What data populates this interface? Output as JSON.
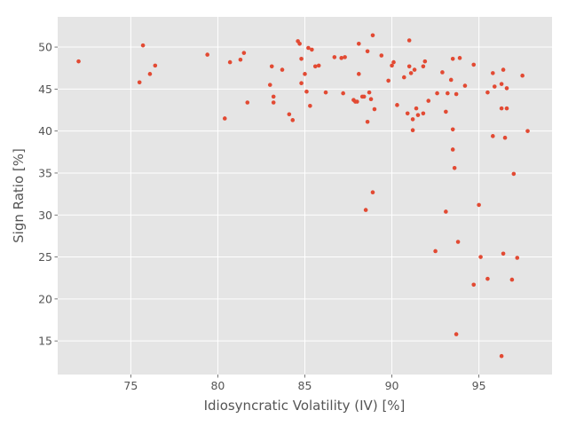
{
  "chart_data": {
    "type": "scatter",
    "title": "",
    "xlabel": "Idiosyncratic Volatility (IV) [%]",
    "ylabel": "Sign Ratio [%]",
    "xlim": [
      70.8,
      99.2
    ],
    "ylim": [
      11.0,
      53.6
    ],
    "xticks": [
      75,
      80,
      85,
      90,
      95
    ],
    "yticks": [
      15,
      20,
      25,
      30,
      35,
      40,
      45,
      50
    ],
    "grid": true,
    "style": "ggplot",
    "marker_color": "#E24A33",
    "series": [
      {
        "points": [
          [
            72.0,
            48.3
          ],
          [
            75.5,
            45.8
          ],
          [
            75.7,
            50.2
          ],
          [
            76.1,
            46.8
          ],
          [
            76.4,
            47.8
          ],
          [
            79.4,
            49.1
          ],
          [
            80.4,
            41.5
          ],
          [
            80.7,
            48.2
          ],
          [
            81.3,
            48.5
          ],
          [
            81.5,
            49.3
          ],
          [
            81.7,
            43.4
          ],
          [
            83.0,
            45.5
          ],
          [
            83.1,
            47.7
          ],
          [
            83.2,
            44.1
          ],
          [
            83.2,
            43.4
          ],
          [
            83.7,
            47.3
          ],
          [
            84.1,
            42.0
          ],
          [
            84.3,
            41.3
          ],
          [
            84.6,
            50.7
          ],
          [
            84.7,
            50.4
          ],
          [
            84.8,
            45.7
          ],
          [
            84.8,
            48.6
          ],
          [
            85.0,
            46.8
          ],
          [
            85.1,
            44.7
          ],
          [
            85.2,
            49.9
          ],
          [
            85.3,
            43.0
          ],
          [
            85.4,
            49.7
          ],
          [
            85.6,
            47.7
          ],
          [
            85.8,
            47.8
          ],
          [
            86.2,
            44.6
          ],
          [
            86.7,
            48.8
          ],
          [
            87.1,
            48.7
          ],
          [
            87.2,
            44.5
          ],
          [
            87.3,
            48.8
          ],
          [
            87.8,
            43.7
          ],
          [
            87.9,
            43.5
          ],
          [
            88.0,
            43.5
          ],
          [
            88.1,
            46.8
          ],
          [
            88.1,
            50.4
          ],
          [
            88.3,
            44.1
          ],
          [
            88.4,
            44.1
          ],
          [
            88.5,
            30.6
          ],
          [
            88.6,
            49.5
          ],
          [
            88.6,
            41.1
          ],
          [
            88.7,
            44.6
          ],
          [
            88.8,
            43.8
          ],
          [
            88.9,
            51.4
          ],
          [
            88.9,
            32.7
          ],
          [
            89.0,
            42.6
          ],
          [
            89.4,
            49.0
          ],
          [
            89.8,
            46.0
          ],
          [
            90.0,
            47.8
          ],
          [
            90.1,
            48.2
          ],
          [
            90.3,
            43.1
          ],
          [
            90.7,
            46.4
          ],
          [
            90.9,
            42.1
          ],
          [
            91.0,
            50.8
          ],
          [
            91.0,
            47.7
          ],
          [
            91.1,
            46.9
          ],
          [
            91.2,
            41.4
          ],
          [
            91.2,
            40.1
          ],
          [
            91.3,
            47.3
          ],
          [
            91.4,
            42.7
          ],
          [
            91.5,
            41.9
          ],
          [
            91.8,
            47.7
          ],
          [
            91.8,
            42.1
          ],
          [
            91.9,
            48.3
          ],
          [
            92.1,
            43.6
          ],
          [
            92.5,
            25.7
          ],
          [
            92.6,
            44.5
          ],
          [
            92.9,
            47.0
          ],
          [
            93.1,
            30.4
          ],
          [
            93.1,
            42.3
          ],
          [
            93.2,
            44.5
          ],
          [
            93.4,
            46.1
          ],
          [
            93.5,
            48.6
          ],
          [
            93.5,
            37.8
          ],
          [
            93.5,
            40.2
          ],
          [
            93.6,
            35.6
          ],
          [
            93.7,
            15.8
          ],
          [
            93.7,
            44.4
          ],
          [
            93.8,
            26.8
          ],
          [
            93.9,
            48.7
          ],
          [
            94.2,
            45.4
          ],
          [
            94.7,
            47.9
          ],
          [
            94.7,
            21.7
          ],
          [
            95.0,
            31.2
          ],
          [
            95.1,
            25.0
          ],
          [
            95.5,
            44.6
          ],
          [
            95.5,
            22.4
          ],
          [
            95.8,
            39.4
          ],
          [
            95.8,
            46.9
          ],
          [
            95.9,
            45.3
          ],
          [
            96.3,
            42.7
          ],
          [
            96.3,
            45.6
          ],
          [
            96.3,
            13.2
          ],
          [
            96.4,
            47.3
          ],
          [
            96.4,
            25.4
          ],
          [
            96.5,
            39.2
          ],
          [
            96.6,
            45.1
          ],
          [
            96.6,
            42.7
          ],
          [
            96.9,
            22.3
          ],
          [
            97.0,
            34.9
          ],
          [
            97.2,
            24.9
          ],
          [
            97.5,
            46.6
          ],
          [
            97.8,
            40.0
          ]
        ]
      }
    ]
  }
}
